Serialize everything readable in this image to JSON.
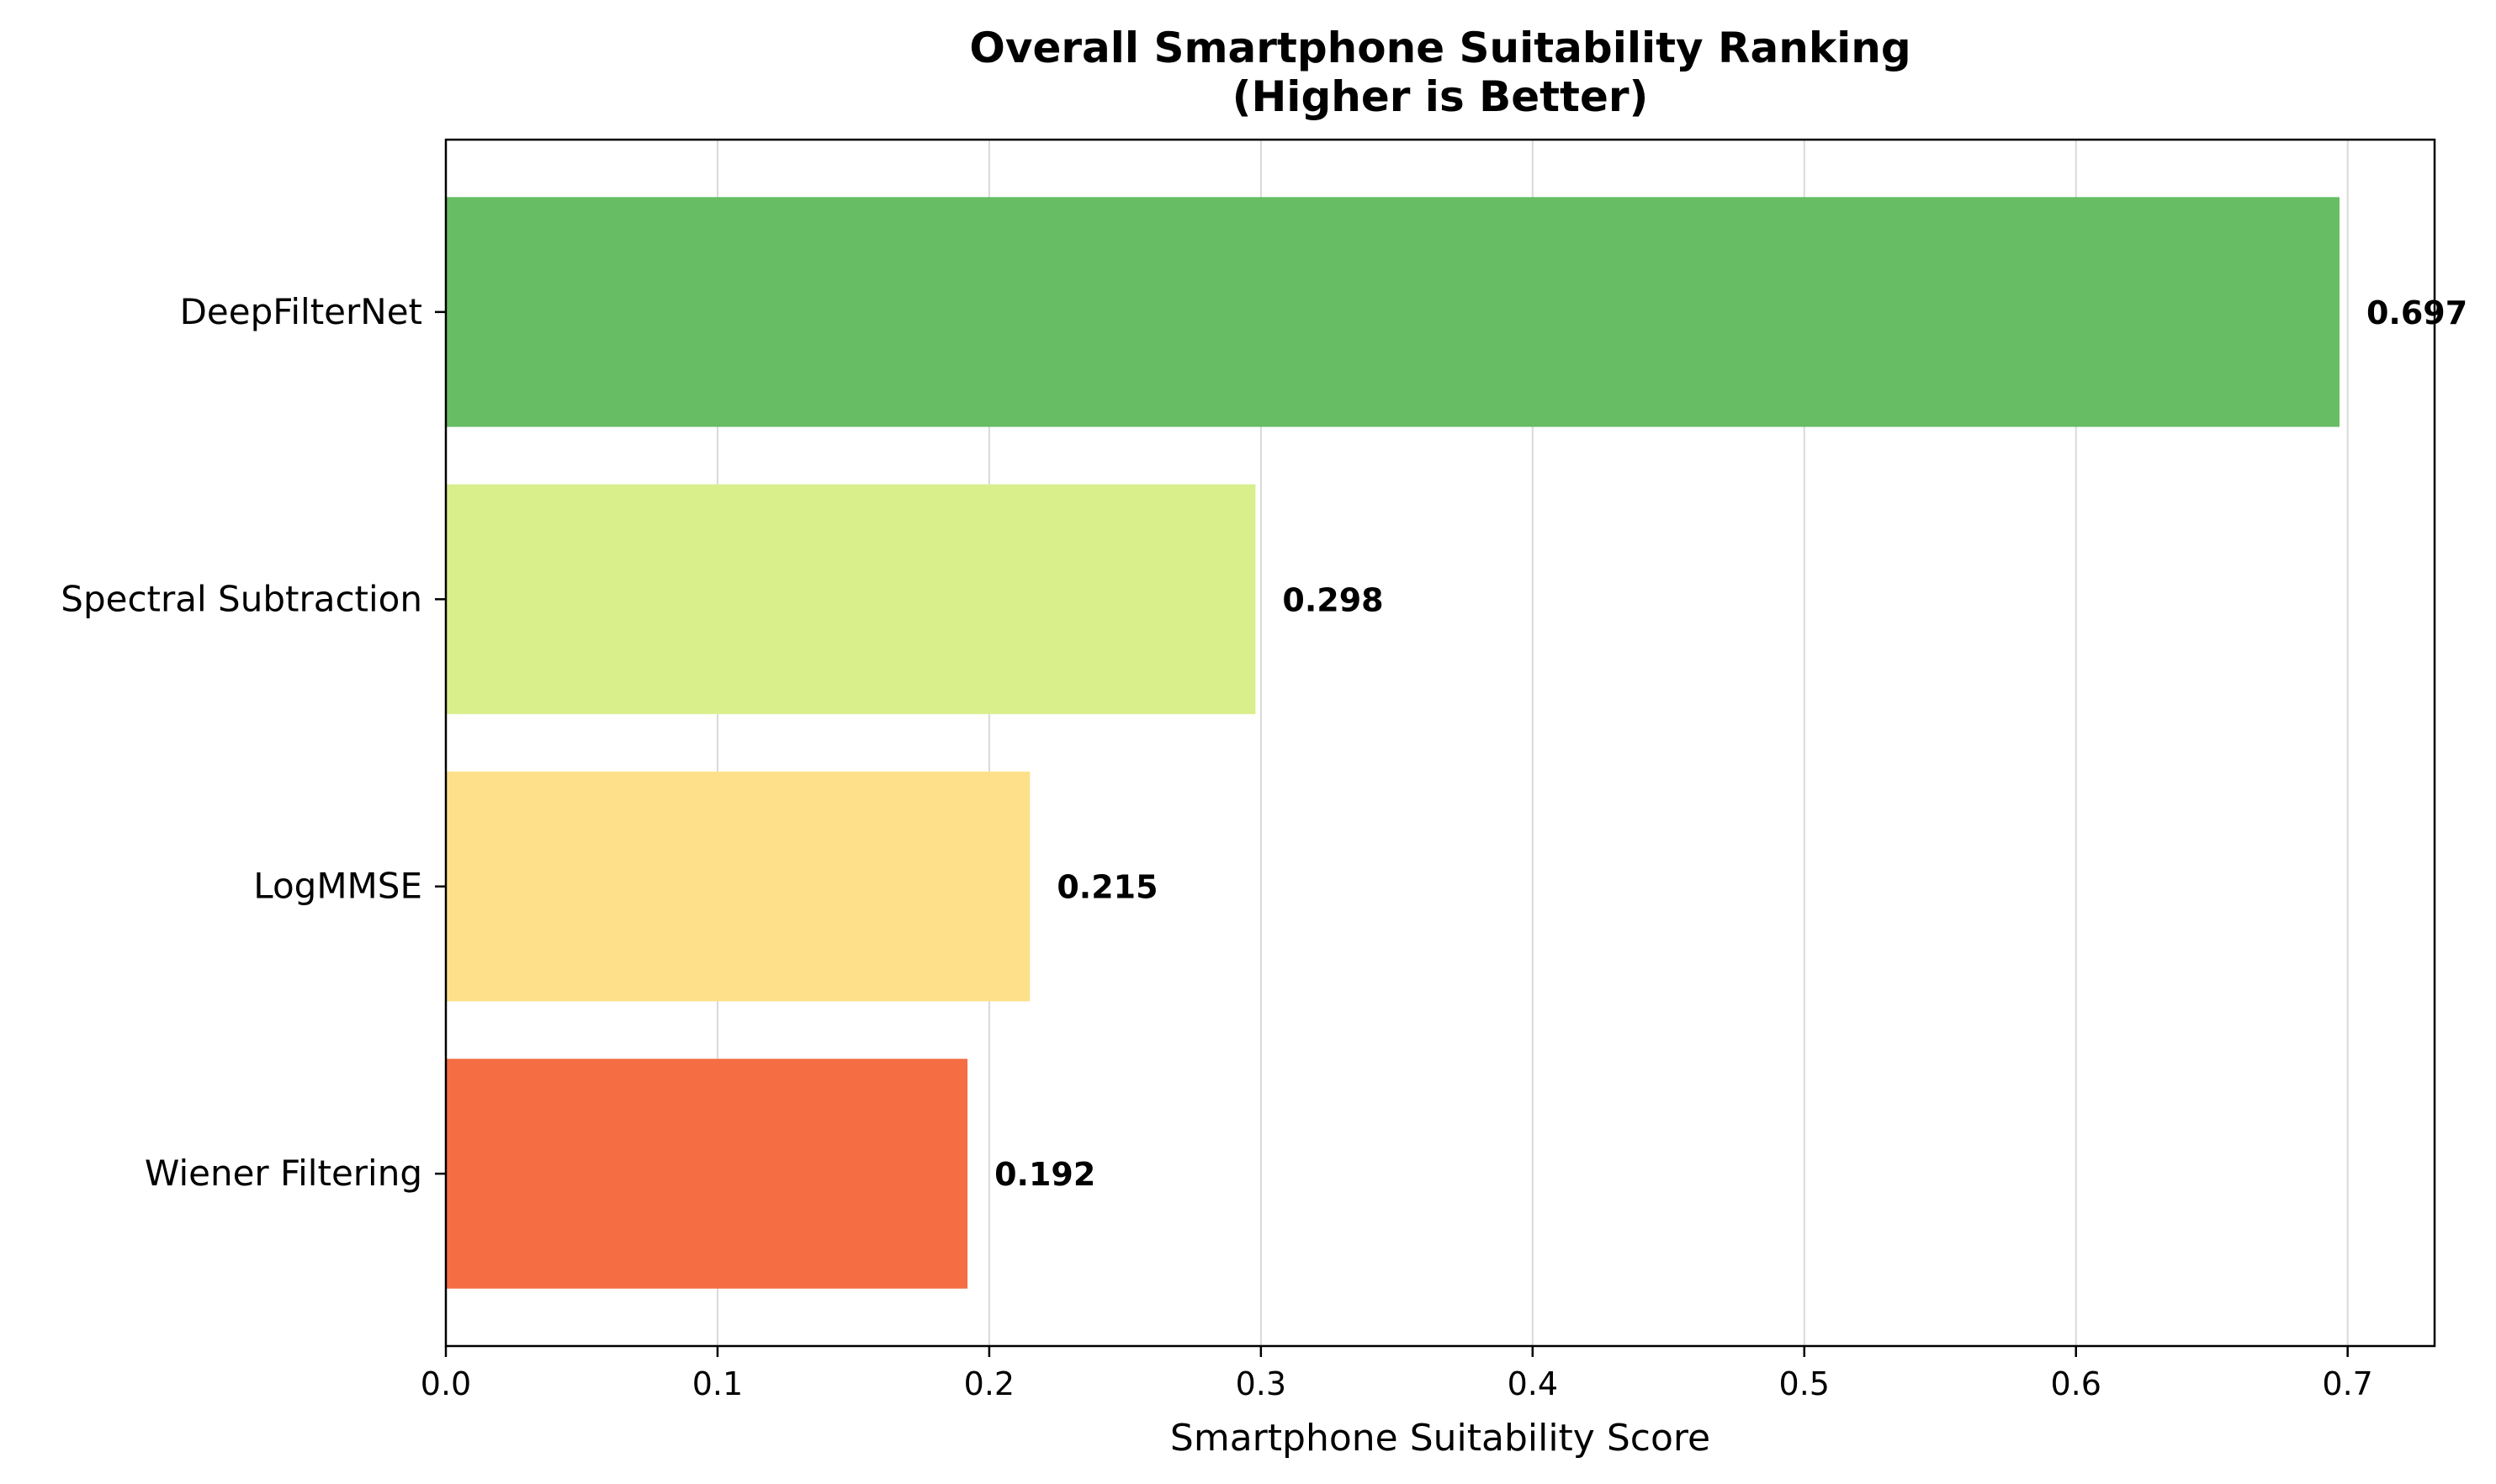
{
  "chart_data": {
    "type": "bar",
    "orientation": "horizontal",
    "title_line1": "Overall Smartphone Suitability Ranking",
    "title_line2": "(Higher is Better)",
    "xlabel": "Smartphone Suitability Score",
    "ylabel": "",
    "xlim": [
      0,
      0.732
    ],
    "xticks": [
      0.0,
      0.1,
      0.2,
      0.3,
      0.4,
      0.5,
      0.6,
      0.7
    ],
    "xtick_labels": [
      "0.0",
      "0.1",
      "0.2",
      "0.3",
      "0.4",
      "0.5",
      "0.6",
      "0.7"
    ],
    "grid": "x-axis vertical lines",
    "categories": [
      "DeepFilterNet",
      "Spectral Subtraction",
      "LogMMSE",
      "Wiener Filtering"
    ],
    "values": [
      0.697,
      0.298,
      0.215,
      0.192
    ],
    "value_labels": [
      "0.697",
      "0.298",
      "0.215",
      "0.192"
    ],
    "colors": [
      "#66bd63",
      "#d9ef8b",
      "#fee08b",
      "#f46d43"
    ]
  }
}
